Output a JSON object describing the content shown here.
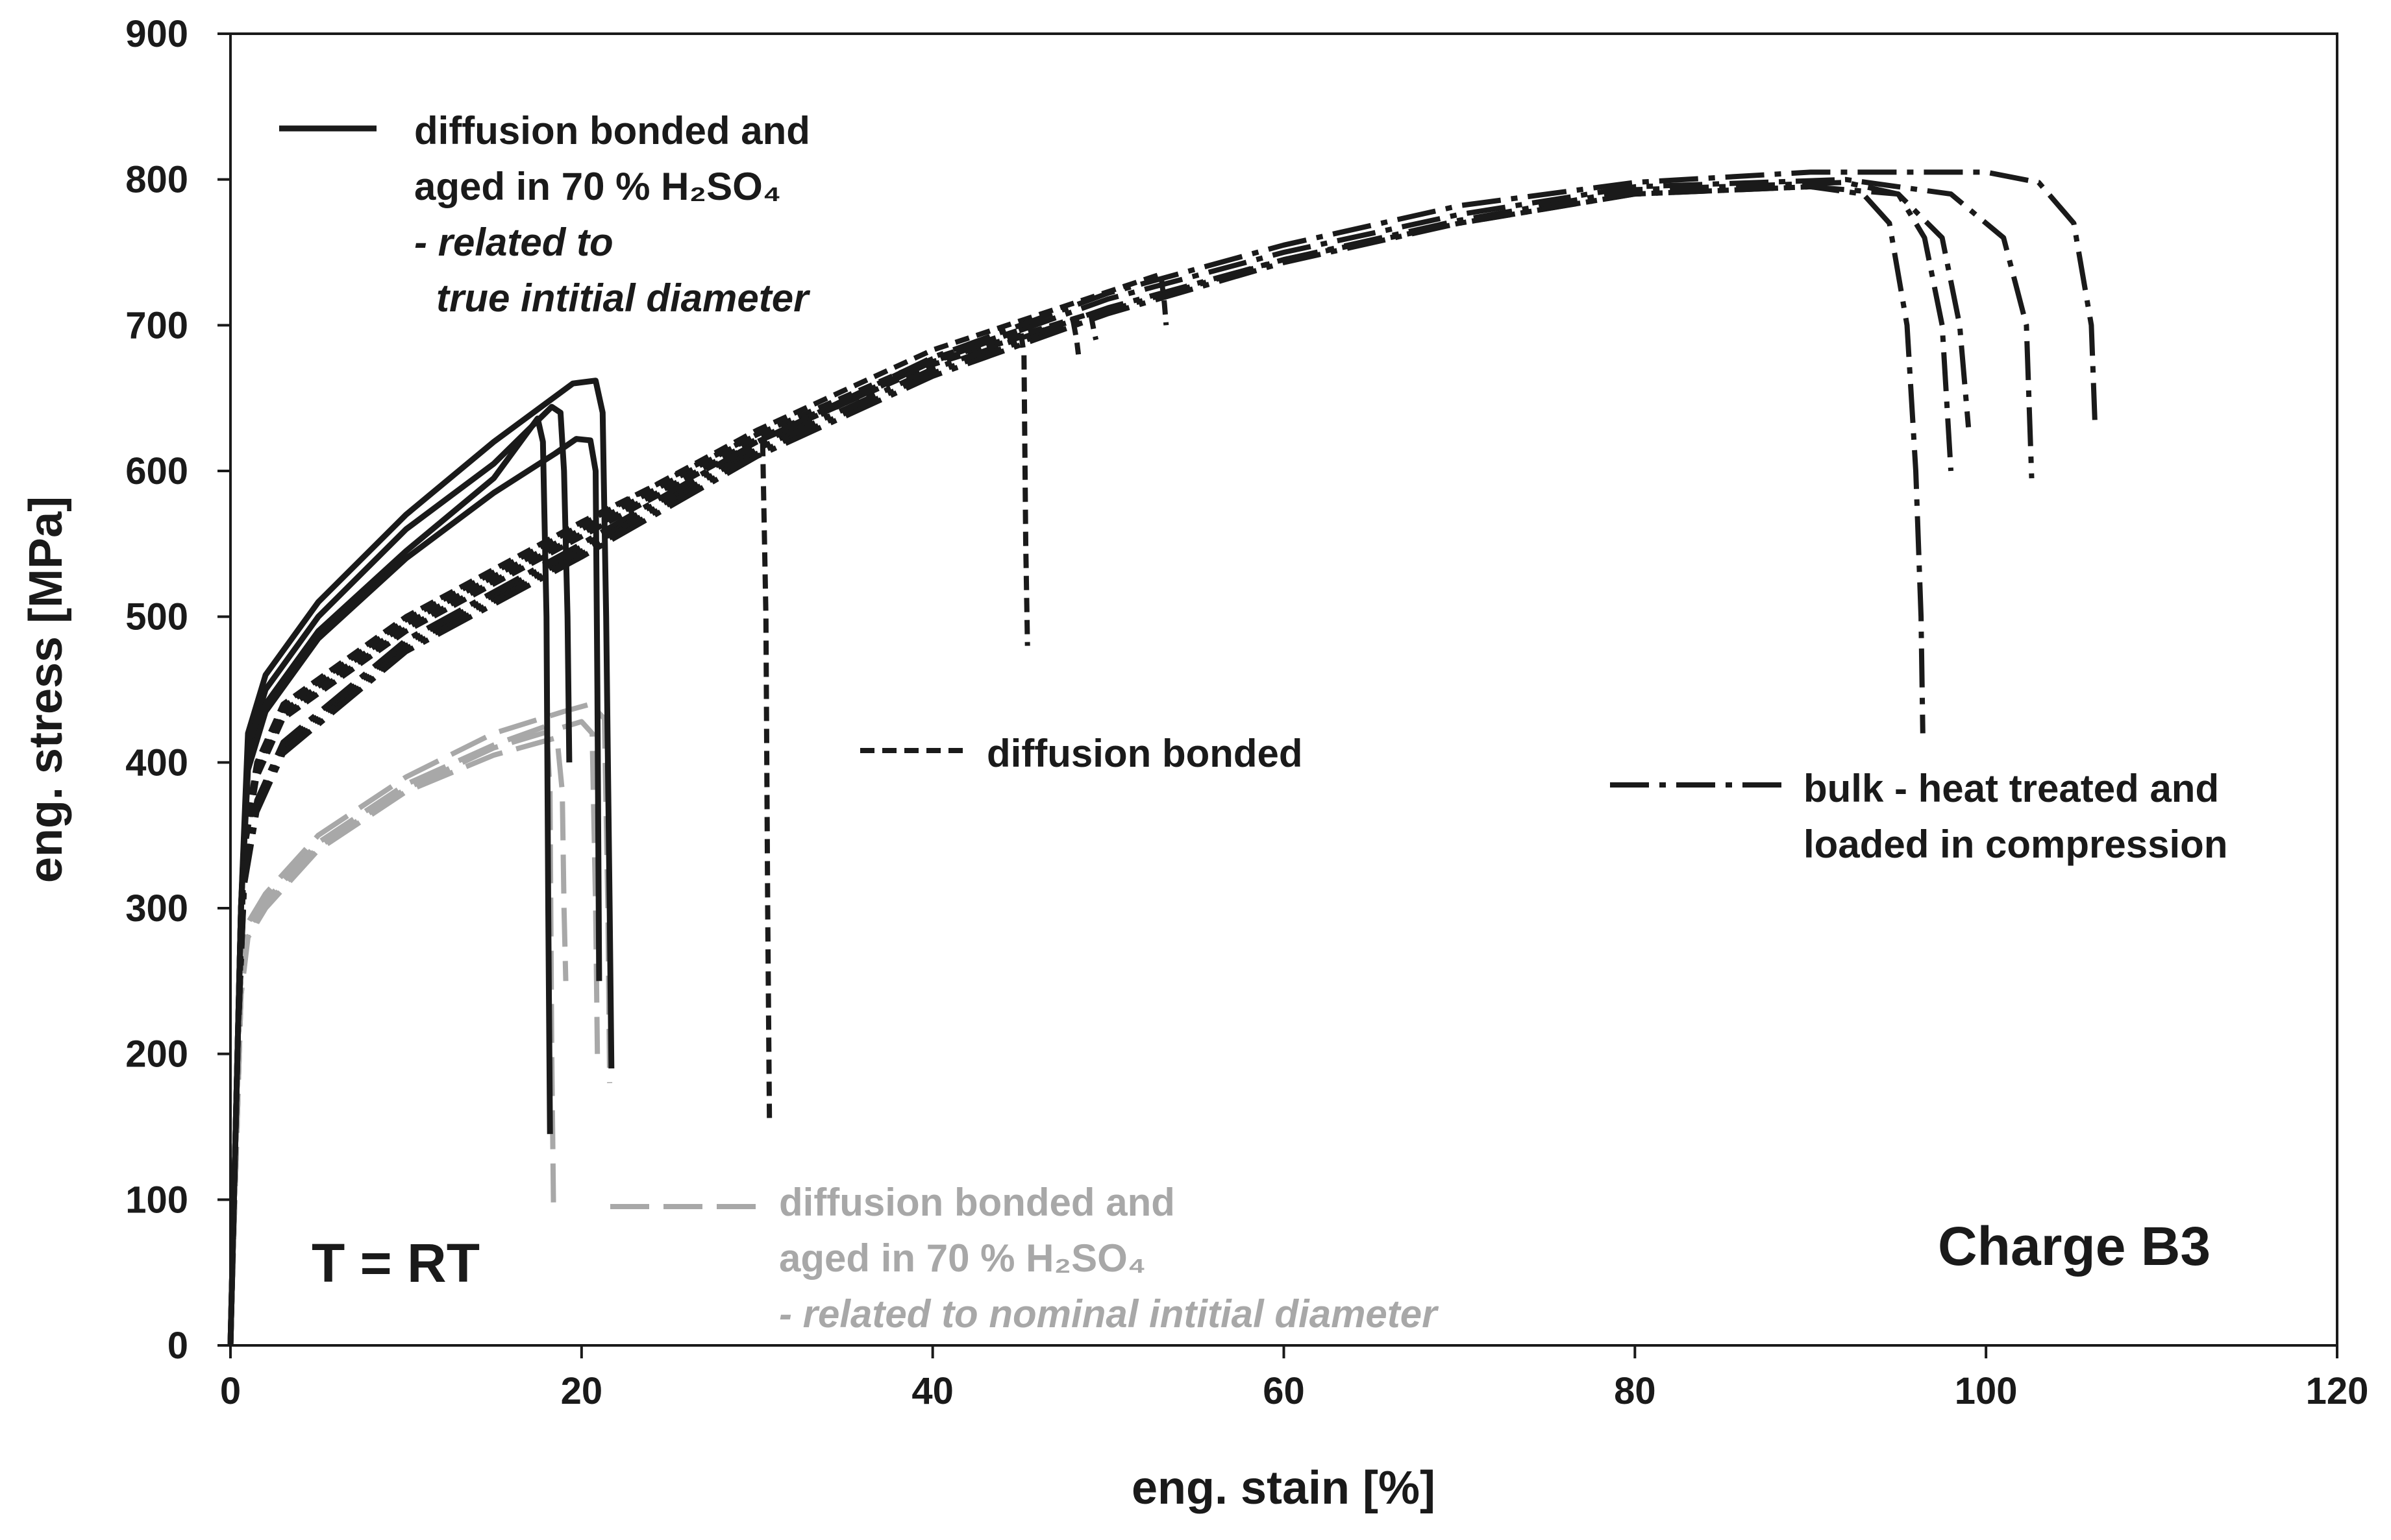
{
  "chart_data": {
    "type": "line",
    "title": "",
    "xlabel": "eng. stain [%]",
    "ylabel": "eng. stress [MPa]",
    "xlim": [
      0,
      120
    ],
    "ylim": [
      0,
      900
    ],
    "x_ticks": [
      "0",
      "20",
      "40",
      "60",
      "80",
      "100",
      "120"
    ],
    "y_ticks": [
      "0",
      "100",
      "200",
      "300",
      "400",
      "500",
      "600",
      "700",
      "800",
      "900"
    ],
    "grid": false,
    "annotations": {
      "temperature": "T = RT",
      "charge": "Charge B3"
    },
    "legend": [
      {
        "key": "aged_true",
        "lines": [
          "diffusion bonded and",
          "aged in 70 % H₂SO₄",
          "- related to",
          "true intitial diameter"
        ],
        "color": "#1a1a1a",
        "style": "solid"
      },
      {
        "key": "diffusion_bonded",
        "lines": [
          "diffusion bonded"
        ],
        "color": "#1a1a1a",
        "style": "dashed"
      },
      {
        "key": "bulk",
        "lines": [
          "bulk - heat treated and",
          "loaded in compression"
        ],
        "color": "#1a1a1a",
        "style": "dashdot"
      },
      {
        "key": "aged_nominal",
        "lines": [
          "diffusion bonded and",
          "aged in 70 % H₂SO₄",
          "- related to nominal intitial diameter"
        ],
        "color": "#a8a8a8",
        "style": "longdash"
      }
    ],
    "series": [
      {
        "name": "aged true 1",
        "group": "aged_true",
        "points": [
          [
            0,
            0
          ],
          [
            0.3,
            150
          ],
          [
            0.6,
            300
          ],
          [
            1,
            420
          ],
          [
            2,
            460
          ],
          [
            5,
            510
          ],
          [
            10,
            570
          ],
          [
            15,
            620
          ],
          [
            19.5,
            660
          ],
          [
            20.8,
            662
          ],
          [
            21.2,
            640
          ],
          [
            21.4,
            500
          ],
          [
            21.6,
            300
          ],
          [
            21.7,
            190
          ]
        ]
      },
      {
        "name": "aged true 2",
        "group": "aged_true",
        "points": [
          [
            0,
            0
          ],
          [
            0.3,
            150
          ],
          [
            0.6,
            300
          ],
          [
            1,
            410
          ],
          [
            2,
            450
          ],
          [
            5,
            500
          ],
          [
            10,
            560
          ],
          [
            15,
            605
          ],
          [
            18.3,
            644
          ],
          [
            18.8,
            640
          ],
          [
            19,
            600
          ],
          [
            19.2,
            500
          ],
          [
            19.3,
            400
          ]
        ]
      },
      {
        "name": "aged true 3",
        "group": "aged_true",
        "points": [
          [
            0,
            0
          ],
          [
            0.3,
            150
          ],
          [
            0.6,
            300
          ],
          [
            1,
            400
          ],
          [
            2,
            440
          ],
          [
            5,
            490
          ],
          [
            10,
            545
          ],
          [
            15,
            595
          ],
          [
            17.5,
            636
          ],
          [
            17.8,
            620
          ],
          [
            18,
            500
          ],
          [
            18.1,
            300
          ],
          [
            18.2,
            145
          ]
        ]
      },
      {
        "name": "aged true 4",
        "group": "aged_true",
        "points": [
          [
            0,
            0
          ],
          [
            0.3,
            150
          ],
          [
            0.6,
            300
          ],
          [
            1,
            395
          ],
          [
            2,
            435
          ],
          [
            5,
            485
          ],
          [
            10,
            540
          ],
          [
            15,
            585
          ],
          [
            18.5,
            612
          ],
          [
            19.7,
            622
          ],
          [
            20.5,
            621
          ],
          [
            20.8,
            600
          ],
          [
            20.9,
            450
          ],
          [
            21,
            250
          ]
        ]
      },
      {
        "name": "aged nominal 1",
        "group": "aged_nominal",
        "points": [
          [
            0,
            0
          ],
          [
            0.3,
            120
          ],
          [
            0.6,
            240
          ],
          [
            1,
            290
          ],
          [
            2,
            310
          ],
          [
            5,
            350
          ],
          [
            10,
            390
          ],
          [
            15,
            420
          ],
          [
            19,
            435
          ],
          [
            20.5,
            440
          ],
          [
            21.3,
            430
          ],
          [
            21.5,
            300
          ],
          [
            21.6,
            180
          ]
        ]
      },
      {
        "name": "aged nominal 2",
        "group": "aged_nominal",
        "points": [
          [
            0,
            0
          ],
          [
            0.3,
            120
          ],
          [
            0.6,
            240
          ],
          [
            1,
            285
          ],
          [
            2,
            305
          ],
          [
            5,
            345
          ],
          [
            10,
            385
          ],
          [
            15,
            412
          ],
          [
            18,
            425
          ],
          [
            18.2,
            380
          ],
          [
            18.3,
            200
          ],
          [
            18.4,
            95
          ]
        ]
      },
      {
        "name": "aged nominal 3",
        "group": "aged_nominal",
        "points": [
          [
            0,
            0
          ],
          [
            0.3,
            120
          ],
          [
            0.6,
            240
          ],
          [
            1,
            280
          ],
          [
            2,
            300
          ],
          [
            5,
            340
          ],
          [
            10,
            380
          ],
          [
            15,
            405
          ],
          [
            18.6,
            417
          ],
          [
            18.9,
            380
          ],
          [
            19,
            300
          ],
          [
            19.1,
            250
          ]
        ]
      },
      {
        "name": "aged nominal 4",
        "group": "aged_nominal",
        "points": [
          [
            0,
            0
          ],
          [
            0.3,
            120
          ],
          [
            0.6,
            240
          ],
          [
            1,
            282
          ],
          [
            2,
            302
          ],
          [
            5,
            342
          ],
          [
            10,
            382
          ],
          [
            15,
            410
          ],
          [
            20,
            428
          ],
          [
            20.6,
            420
          ],
          [
            20.8,
            300
          ],
          [
            20.9,
            200
          ]
        ]
      },
      {
        "name": "diffusion bonded 1",
        "group": "diffusion_bonded",
        "points": [
          [
            0,
            0
          ],
          [
            0.4,
            200
          ],
          [
            0.8,
            350
          ],
          [
            1.5,
            400
          ],
          [
            3,
            440
          ],
          [
            10,
            500
          ],
          [
            20,
            565
          ],
          [
            30,
            625
          ],
          [
            30.3,
            628
          ],
          [
            30.5,
            500
          ],
          [
            30.6,
            300
          ],
          [
            30.7,
            155
          ]
        ]
      },
      {
        "name": "diffusion bonded 2",
        "group": "diffusion_bonded",
        "points": [
          [
            0,
            0
          ],
          [
            0.4,
            200
          ],
          [
            0.8,
            345
          ],
          [
            1.5,
            395
          ],
          [
            3,
            435
          ],
          [
            10,
            495
          ],
          [
            20,
            560
          ],
          [
            30,
            625
          ],
          [
            40,
            677
          ],
          [
            45,
            697
          ],
          [
            45.2,
            680
          ],
          [
            45.3,
            550
          ],
          [
            45.4,
            480
          ]
        ]
      },
      {
        "name": "diffusion bonded 3",
        "group": "diffusion_bonded",
        "points": [
          [
            0,
            0
          ],
          [
            0.4,
            200
          ],
          [
            0.8,
            340
          ],
          [
            1.5,
            390
          ],
          [
            3,
            430
          ],
          [
            10,
            490
          ],
          [
            20,
            555
          ],
          [
            30,
            620
          ],
          [
            40,
            673
          ],
          [
            48,
            703
          ],
          [
            48.2,
            690
          ],
          [
            48.3,
            680
          ]
        ]
      },
      {
        "name": "diffusion bonded 4",
        "group": "diffusion_bonded",
        "points": [
          [
            0,
            0
          ],
          [
            0.4,
            200
          ],
          [
            0.8,
            342
          ],
          [
            1.5,
            392
          ],
          [
            3,
            432
          ],
          [
            10,
            492
          ],
          [
            20,
            557
          ],
          [
            30,
            622
          ],
          [
            40,
            675
          ],
          [
            49,
            708
          ],
          [
            49.2,
            695
          ],
          [
            49.3,
            690
          ]
        ]
      },
      {
        "name": "diffusion bonded 5",
        "group": "diffusion_bonded",
        "points": [
          [
            0,
            0
          ],
          [
            0.4,
            200
          ],
          [
            0.8,
            348
          ],
          [
            1.5,
            398
          ],
          [
            3,
            438
          ],
          [
            10,
            498
          ],
          [
            20,
            563
          ],
          [
            30,
            628
          ],
          [
            40,
            683
          ],
          [
            53,
            735
          ],
          [
            53.2,
            715
          ],
          [
            53.3,
            700
          ]
        ]
      },
      {
        "name": "bulk 1",
        "group": "bulk",
        "points": [
          [
            0,
            0
          ],
          [
            0.4,
            200
          ],
          [
            0.8,
            320
          ],
          [
            1.5,
            370
          ],
          [
            3,
            410
          ],
          [
            10,
            480
          ],
          [
            20,
            545
          ],
          [
            30,
            615
          ],
          [
            40,
            670
          ],
          [
            50,
            712
          ],
          [
            60,
            745
          ],
          [
            70,
            770
          ],
          [
            80,
            790
          ],
          [
            90,
            795
          ],
          [
            93,
            790
          ],
          [
            94.5,
            770
          ],
          [
            95.5,
            700
          ],
          [
            96,
            600
          ],
          [
            96.3,
            500
          ],
          [
            96.4,
            420
          ]
        ]
      },
      {
        "name": "bulk 2",
        "group": "bulk",
        "points": [
          [
            0,
            0
          ],
          [
            0.4,
            200
          ],
          [
            0.8,
            318
          ],
          [
            1.5,
            368
          ],
          [
            3,
            408
          ],
          [
            10,
            478
          ],
          [
            20,
            543
          ],
          [
            30,
            612
          ],
          [
            40,
            667
          ],
          [
            50,
            710
          ],
          [
            60,
            745
          ],
          [
            70,
            772
          ],
          [
            80,
            793
          ],
          [
            92,
            798
          ],
          [
            95,
            790
          ],
          [
            96.5,
            760
          ],
          [
            97.5,
            700
          ],
          [
            98,
            600
          ]
        ]
      },
      {
        "name": "bulk 3",
        "group": "bulk",
        "points": [
          [
            0,
            0
          ],
          [
            0.4,
            200
          ],
          [
            0.8,
            316
          ],
          [
            1.5,
            366
          ],
          [
            3,
            406
          ],
          [
            10,
            476
          ],
          [
            20,
            541
          ],
          [
            30,
            610
          ],
          [
            40,
            665
          ],
          [
            50,
            708
          ],
          [
            60,
            743
          ],
          [
            70,
            770
          ],
          [
            80,
            790
          ],
          [
            90,
            795
          ],
          [
            95,
            790
          ],
          [
            97.5,
            760
          ],
          [
            98.5,
            700
          ],
          [
            99,
            630
          ]
        ]
      },
      {
        "name": "bulk 4",
        "group": "bulk",
        "points": [
          [
            0,
            0
          ],
          [
            0.4,
            200
          ],
          [
            0.8,
            320
          ],
          [
            1.5,
            372
          ],
          [
            3,
            412
          ],
          [
            10,
            482
          ],
          [
            20,
            548
          ],
          [
            30,
            618
          ],
          [
            40,
            675
          ],
          [
            50,
            718
          ],
          [
            60,
            750
          ],
          [
            70,
            776
          ],
          [
            80,
            795
          ],
          [
            92,
            800
          ],
          [
            98,
            790
          ],
          [
            101,
            760
          ],
          [
            102.3,
            700
          ],
          [
            102.6,
            595
          ]
        ]
      },
      {
        "name": "bulk 5",
        "group": "bulk",
        "points": [
          [
            0,
            0
          ],
          [
            0.4,
            200
          ],
          [
            0.8,
            322
          ],
          [
            1.5,
            374
          ],
          [
            3,
            414
          ],
          [
            10,
            484
          ],
          [
            20,
            550
          ],
          [
            30,
            620
          ],
          [
            40,
            678
          ],
          [
            50,
            722
          ],
          [
            60,
            755
          ],
          [
            70,
            782
          ],
          [
            80,
            798
          ],
          [
            90,
            805
          ],
          [
            100,
            805
          ],
          [
            103,
            798
          ],
          [
            105,
            770
          ],
          [
            106,
            700
          ],
          [
            106.2,
            635
          ]
        ]
      }
    ]
  }
}
